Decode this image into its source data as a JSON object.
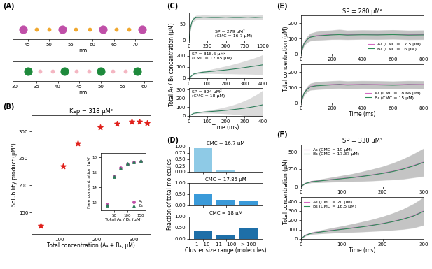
{
  "chart_data": [
    {
      "type": "strip",
      "panel": "(A)",
      "xlabel": "nm",
      "xlim": [
        41.5,
        74
      ],
      "xticks": [
        45,
        50,
        55,
        60,
        65,
        70
      ],
      "tick_labels": "x",
      "series": [
        {
          "color": "#c04fa8",
          "x": [
            44,
            53,
            62.5,
            71.5
          ]
        },
        {
          "color": "#f0a830",
          "x": [
            47,
            50,
            56.2,
            59.3,
            65.5,
            68.5
          ]
        }
      ]
    },
    {
      "type": "strip",
      "xlabel": "nm",
      "xlim": [
        29.5,
        62
      ],
      "xticks": [
        30,
        35,
        40,
        45,
        50,
        55,
        60
      ],
      "tick_labels": "x",
      "series": [
        {
          "color": "#1e8a3c",
          "x": [
            33,
            41.5,
            50,
            58.5
          ]
        },
        {
          "color": "#f4b6c2",
          "x": [
            35.8,
            38.7,
            44.3,
            47.2,
            52.8,
            55.7
          ]
        }
      ]
    },
    {
      "type": "scatter",
      "panel": "(B)",
      "title": "Ksp = 318 μM²",
      "xlabel": "Total concentration (A₄ + B₄, μM)",
      "ylabel": "Solubility product (μM²)",
      "xlim": [
        25,
        345
      ],
      "xticks": [
        100,
        200,
        300
      ],
      "ylim": [
        110,
        330
      ],
      "yticks": [
        150,
        200,
        250,
        300
      ],
      "reference_value": 318,
      "x": [
        50,
        110,
        150,
        210,
        255,
        295,
        315,
        335
      ],
      "series": [
        {
          "color": "#e0201b",
          "marker": "star",
          "values": [
            125,
            235,
            278,
            308,
            315,
            318,
            319,
            316
          ]
        }
      ]
    },
    {
      "type": "scatter",
      "xlabel": "Total A₄ / B₄ (μM)",
      "ylabel": "Free concentration (μM)",
      "xlim": [
        0,
        170
      ],
      "xticks": [
        50,
        100,
        150
      ],
      "ylim": [
        11,
        18.5
      ],
      "yticks": [
        12,
        14,
        16,
        18
      ],
      "legend": "lower right",
      "x": [
        25,
        50,
        75,
        100,
        125,
        150
      ],
      "series": [
        {
          "name": "A₄",
          "color": "#c04fa8",
          "marker": "circle",
          "values": [
            11.8,
            15.5,
            16.6,
            17.1,
            17.3,
            17.4
          ]
        },
        {
          "name": "B₄",
          "color": "#2e7d5b",
          "marker": "triangle",
          "values": [
            11.6,
            15.4,
            16.5,
            17.2,
            17.3,
            17.5
          ]
        }
      ]
    },
    {
      "type": "line",
      "panel": "(C)",
      "annotation": "SP = 279 μM²\n(CMC = 16.7 μM)",
      "xlim": [
        0,
        1000
      ],
      "xticks": [
        0,
        250,
        500,
        750,
        1000
      ],
      "ylim": [
        0,
        85
      ],
      "yticks": [
        0,
        50
      ],
      "x": [
        0,
        20,
        40,
        60,
        80,
        100,
        150,
        200,
        300,
        400,
        500,
        600,
        700,
        800,
        900,
        1000
      ],
      "series": [
        {
          "color": "#2e7d5b",
          "values": [
            0,
            40,
            58,
            65,
            68,
            70,
            70,
            71,
            70,
            70,
            71,
            70,
            70,
            71,
            70,
            71
          ],
          "error": [
            0,
            6,
            7,
            7,
            7,
            7,
            7,
            7,
            7,
            7,
            7,
            7,
            7,
            7,
            7,
            7
          ]
        }
      ]
    },
    {
      "type": "line",
      "annotation": "SP = 318.6 μM²\n(CMC = 17.85 μM)",
      "ylabel": "Total A₄ / B₄ concentration (μM)",
      "xlim": [
        0,
        400
      ],
      "xticks": [
        0,
        100,
        200,
        300,
        400
      ],
      "ylim": [
        0,
        250
      ],
      "yticks": [
        0,
        100,
        200
      ],
      "x": [
        0,
        25,
        50,
        75,
        100,
        125,
        150,
        175,
        200,
        225,
        250,
        275,
        300,
        325,
        350,
        375,
        400
      ],
      "series": [
        {
          "color": "#2e7d5b",
          "values": [
            0,
            38,
            48,
            54,
            58,
            62,
            66,
            70,
            74,
            79,
            84,
            89,
            95,
            101,
            107,
            113,
            120
          ],
          "error": [
            0,
            5,
            8,
            12,
            16,
            20,
            25,
            30,
            35,
            40,
            46,
            52,
            58,
            65,
            72,
            80,
            90
          ]
        }
      ]
    },
    {
      "type": "line",
      "annotation": "SP = 324 μM²\n(CMC = 18 μM)",
      "xlabel": "Time (ms)",
      "xlim": [
        0,
        400
      ],
      "xticks": [
        0,
        100,
        200,
        300,
        400
      ],
      "ylim": [
        0,
        320
      ],
      "yticks": [
        0,
        100,
        200,
        300
      ],
      "x": [
        0,
        25,
        50,
        75,
        100,
        125,
        150,
        175,
        200,
        225,
        250,
        275,
        300,
        325,
        350,
        375,
        400
      ],
      "series": [
        {
          "color": "#2e7d5b",
          "values": [
            0,
            30,
            38,
            44,
            48,
            52,
            56,
            60,
            65,
            70,
            76,
            82,
            89,
            97,
            106,
            116,
            128
          ],
          "error": [
            0,
            5,
            8,
            12,
            16,
            20,
            26,
            32,
            40,
            48,
            58,
            70,
            85,
            100,
            120,
            140,
            165
          ]
        }
      ]
    },
    {
      "type": "bar",
      "panel": "(D)",
      "title": "CMC = 16.7 μM",
      "tick_labels": "y",
      "color": "#8ecae6",
      "categories": [
        "1 - 10",
        "11 - 100",
        "> 100"
      ],
      "values": [
        0.95,
        0.05,
        0
      ],
      "ylim": [
        0,
        1.0
      ],
      "yticks": [
        {
          "value": 0,
          "label": "0.00"
        },
        {
          "value": 0.25,
          "label": "0.25"
        },
        {
          "value": 0.5,
          "label": "0.50"
        },
        {
          "value": 0.75,
          "label": "0.75"
        },
        {
          "value": 1.0,
          "label": "1.00"
        }
      ]
    },
    {
      "type": "bar",
      "title": "CMC = 17.85 μM",
      "tick_labels": "y",
      "color": "#3a9ad9",
      "ylabel": "Fraction of total molecules",
      "categories": [
        "1 - 10",
        "11 - 100",
        "> 100"
      ],
      "values": [
        0.52,
        0.26,
        0.23
      ],
      "ylim": [
        0,
        1.0
      ],
      "yticks": [
        {
          "value": 0,
          "label": "0.00"
        },
        {
          "value": 0.5,
          "label": "0.50"
        },
        {
          "value": 1.0,
          "label": "1.00"
        }
      ]
    },
    {
      "type": "bar",
      "title": "CMC = 18 μM",
      "color": "#1e6fa8",
      "xlabel": "Cluster size range (molecules)",
      "categories": [
        "1 - 10",
        "11 - 100",
        "> 100"
      ],
      "values": [
        0.35,
        0.15,
        0.5
      ],
      "ylim": [
        0,
        1.0
      ],
      "yticks": [
        {
          "value": 0,
          "label": "0.00"
        },
        {
          "value": 0.5,
          "label": "0.50"
        },
        {
          "value": 1.0,
          "label": "1.00"
        }
      ]
    },
    {
      "type": "line",
      "panel": "(E)",
      "title": "SP = 280 μM²",
      "ylabel": "Total concentration (μM)",
      "legend": "lower right",
      "xlim": [
        0,
        800
      ],
      "xticks": [
        0,
        200,
        400,
        600,
        800
      ],
      "ylim": [
        0,
        250
      ],
      "yticks": [
        0,
        100,
        200
      ],
      "x": [
        0,
        10,
        20,
        40,
        60,
        100,
        150,
        200,
        250,
        300,
        400,
        500,
        600,
        700,
        800
      ],
      "series": [
        {
          "name": "A₄ (CMC = 17.5 μM)",
          "color": "#d36ac2",
          "values": [
            0,
            40,
            70,
            95,
            110,
            118,
            122,
            125,
            128,
            124,
            126,
            125,
            127,
            124,
            125
          ],
          "error": [
            0,
            10,
            15,
            20,
            25,
            28,
            30,
            30,
            32,
            30,
            30,
            30,
            30,
            30,
            30
          ]
        },
        {
          "name": "B₄ (CMC = 16 μM)",
          "color": "#2e8b57",
          "values": [
            0,
            38,
            68,
            93,
            108,
            116,
            120,
            123,
            125,
            122,
            124,
            123,
            125,
            122,
            123
          ],
          "error": [
            0,
            10,
            15,
            20,
            25,
            28,
            30,
            30,
            32,
            30,
            30,
            30,
            30,
            30,
            30
          ]
        }
      ]
    },
    {
      "type": "line",
      "xlabel": "Time (ms)",
      "legend": "lower right",
      "xlim": [
        0,
        800
      ],
      "xticks": [
        0,
        200,
        400,
        600,
        800
      ],
      "ylim": [
        0,
        250
      ],
      "yticks": [
        0,
        100,
        200
      ],
      "x": [
        0,
        10,
        20,
        40,
        60,
        100,
        150,
        200,
        250,
        300,
        400,
        500,
        600,
        700,
        800
      ],
      "series": [
        {
          "name": "A₄ (CMC = 18.66 μM)",
          "color": "#d36ac2",
          "values": [
            0,
            35,
            65,
            90,
            105,
            112,
            115,
            118,
            120,
            117,
            119,
            118,
            116,
            119,
            118
          ],
          "error": [
            0,
            10,
            15,
            18,
            22,
            25,
            25,
            25,
            25,
            25,
            25,
            25,
            25,
            25,
            25
          ]
        },
        {
          "name": "B₄ (CMC = 15 μM)",
          "color": "#2e8b57",
          "values": [
            0,
            34,
            63,
            88,
            103,
            110,
            113,
            116,
            118,
            115,
            117,
            116,
            114,
            117,
            116
          ],
          "error": [
            0,
            10,
            15,
            18,
            22,
            25,
            25,
            25,
            25,
            25,
            25,
            25,
            25,
            25,
            25
          ]
        }
      ]
    },
    {
      "type": "line",
      "panel": "(F)",
      "title": "SP = 330 μM²",
      "ylabel": "Total concentration (μM)",
      "legend": "upper left",
      "xlim": [
        0,
        300
      ],
      "xticks": [
        0,
        100,
        200,
        300
      ],
      "ylim": [
        0,
        600
      ],
      "yticks": [
        0,
        250,
        500
      ],
      "x": [
        0,
        10,
        25,
        50,
        75,
        100,
        125,
        150,
        175,
        200,
        225,
        250,
        275,
        300
      ],
      "series": [
        {
          "name": "A₄ (CMC = 19 μM)",
          "color": "#d36ac2",
          "values": [
            0,
            45,
            70,
            85,
            100,
            115,
            130,
            148,
            168,
            192,
            220,
            255,
            300,
            350
          ],
          "error": [
            0,
            8,
            15,
            25,
            35,
            45,
            55,
            70,
            85,
            100,
            120,
            145,
            170,
            200
          ]
        },
        {
          "name": "B₄ (CMC = 17.37 μM)",
          "color": "#2e8b57",
          "values": [
            0,
            43,
            68,
            83,
            98,
            112,
            127,
            145,
            165,
            188,
            215,
            250,
            295,
            345
          ],
          "error": [
            0,
            8,
            15,
            25,
            35,
            45,
            55,
            70,
            85,
            100,
            120,
            145,
            170,
            200
          ]
        }
      ]
    },
    {
      "type": "line",
      "xlabel": "Time (ms)",
      "legend": "upper left",
      "xlim": [
        0,
        300
      ],
      "xticks": [
        0,
        100,
        200,
        300
      ],
      "ylim": [
        0,
        450
      ],
      "yticks": [
        0,
        100,
        200,
        300,
        400
      ],
      "x": [
        0,
        10,
        25,
        50,
        75,
        100,
        125,
        150,
        175,
        200,
        225,
        250,
        275,
        300
      ],
      "series": [
        {
          "name": "A₄ (CMC = 20 μM)",
          "color": "#d36ac2",
          "values": [
            0,
            40,
            62,
            78,
            92,
            105,
            118,
            132,
            148,
            166,
            188,
            215,
            250,
            300
          ],
          "error": [
            0,
            8,
            12,
            20,
            28,
            35,
            45,
            55,
            65,
            78,
            92,
            110,
            130,
            150
          ]
        },
        {
          "name": "B₄ (CMC = 16.5 μM)",
          "color": "#2e8b57",
          "values": [
            0,
            38,
            60,
            76,
            90,
            103,
            116,
            130,
            146,
            164,
            186,
            212,
            246,
            296
          ],
          "error": [
            0,
            8,
            12,
            20,
            28,
            35,
            45,
            55,
            65,
            78,
            92,
            110,
            130,
            150
          ]
        }
      ]
    }
  ]
}
